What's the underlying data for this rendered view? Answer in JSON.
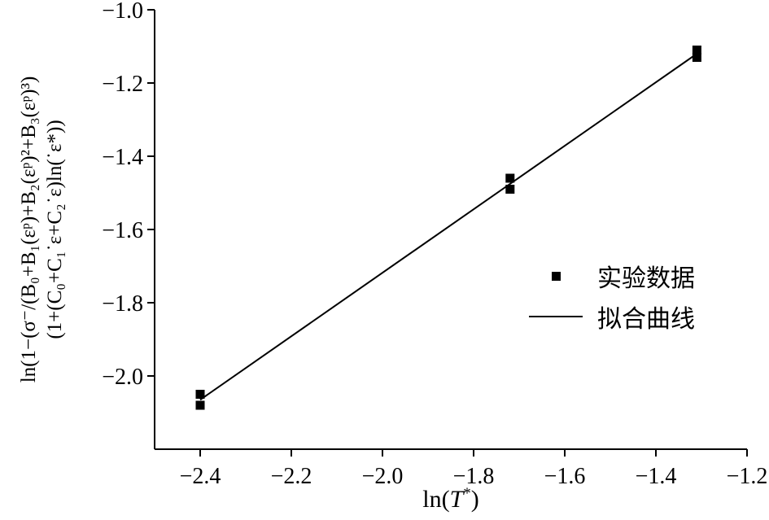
{
  "chart_data": {
    "type": "scatter",
    "title": "",
    "xlabel": "ln(T*)",
    "xlabel_parts": {
      "pre": "ln(",
      "var": "T",
      "sup": "*",
      "post": ")"
    },
    "ylabel_line1": "ln(1−(σ⁻/(B₀+B₁(εᵖ)+B₂(εᵖ)²+B₃(εᵖ)³)",
    "ylabel_line2": "(1+(C₀+C₁˙ε+C₂˙ε)ln(˙ε*))",
    "xlim": [
      -2.5,
      -1.2
    ],
    "ylim": [
      -2.2,
      -1.0
    ],
    "grid": false,
    "axis_color": "#000000",
    "background_color": "#ffffff",
    "x_ticks": [
      {
        "value": -2.4,
        "label": "−2.4"
      },
      {
        "value": -2.2,
        "label": "−2.2"
      },
      {
        "value": -2.0,
        "label": "−2.0"
      },
      {
        "value": -1.8,
        "label": "−1.8"
      },
      {
        "value": -1.6,
        "label": "−1.6"
      },
      {
        "value": -1.4,
        "label": "−1.4"
      },
      {
        "value": -1.2,
        "label": "−1.2"
      }
    ],
    "y_ticks": [
      {
        "value": -1.0,
        "label": "−1.0"
      },
      {
        "value": -1.2,
        "label": "−1.2"
      },
      {
        "value": -1.4,
        "label": "−1.4"
      },
      {
        "value": -1.6,
        "label": "−1.6"
      },
      {
        "value": -1.8,
        "label": "−1.8"
      },
      {
        "value": -2.0,
        "label": "−2.0"
      }
    ],
    "series": [
      {
        "name": "实验数据",
        "type": "scatter",
        "marker": "square",
        "color": "#000000",
        "points": [
          {
            "x": -2.4,
            "y": -2.05
          },
          {
            "x": -2.4,
            "y": -2.08
          },
          {
            "x": -1.72,
            "y": -1.46
          },
          {
            "x": -1.72,
            "y": -1.49
          },
          {
            "x": -1.31,
            "y": -1.11
          },
          {
            "x": -1.31,
            "y": -1.13
          }
        ]
      },
      {
        "name": "拟合曲线",
        "type": "line",
        "color": "#000000",
        "points": [
          {
            "x": -2.4,
            "y": -2.065
          },
          {
            "x": -1.31,
            "y": -1.12
          }
        ]
      }
    ],
    "legend": {
      "position": "middle-right",
      "entries": [
        {
          "marker": "square",
          "label": "实验数据"
        },
        {
          "marker": "line",
          "label": "拟合曲线"
        }
      ]
    }
  }
}
